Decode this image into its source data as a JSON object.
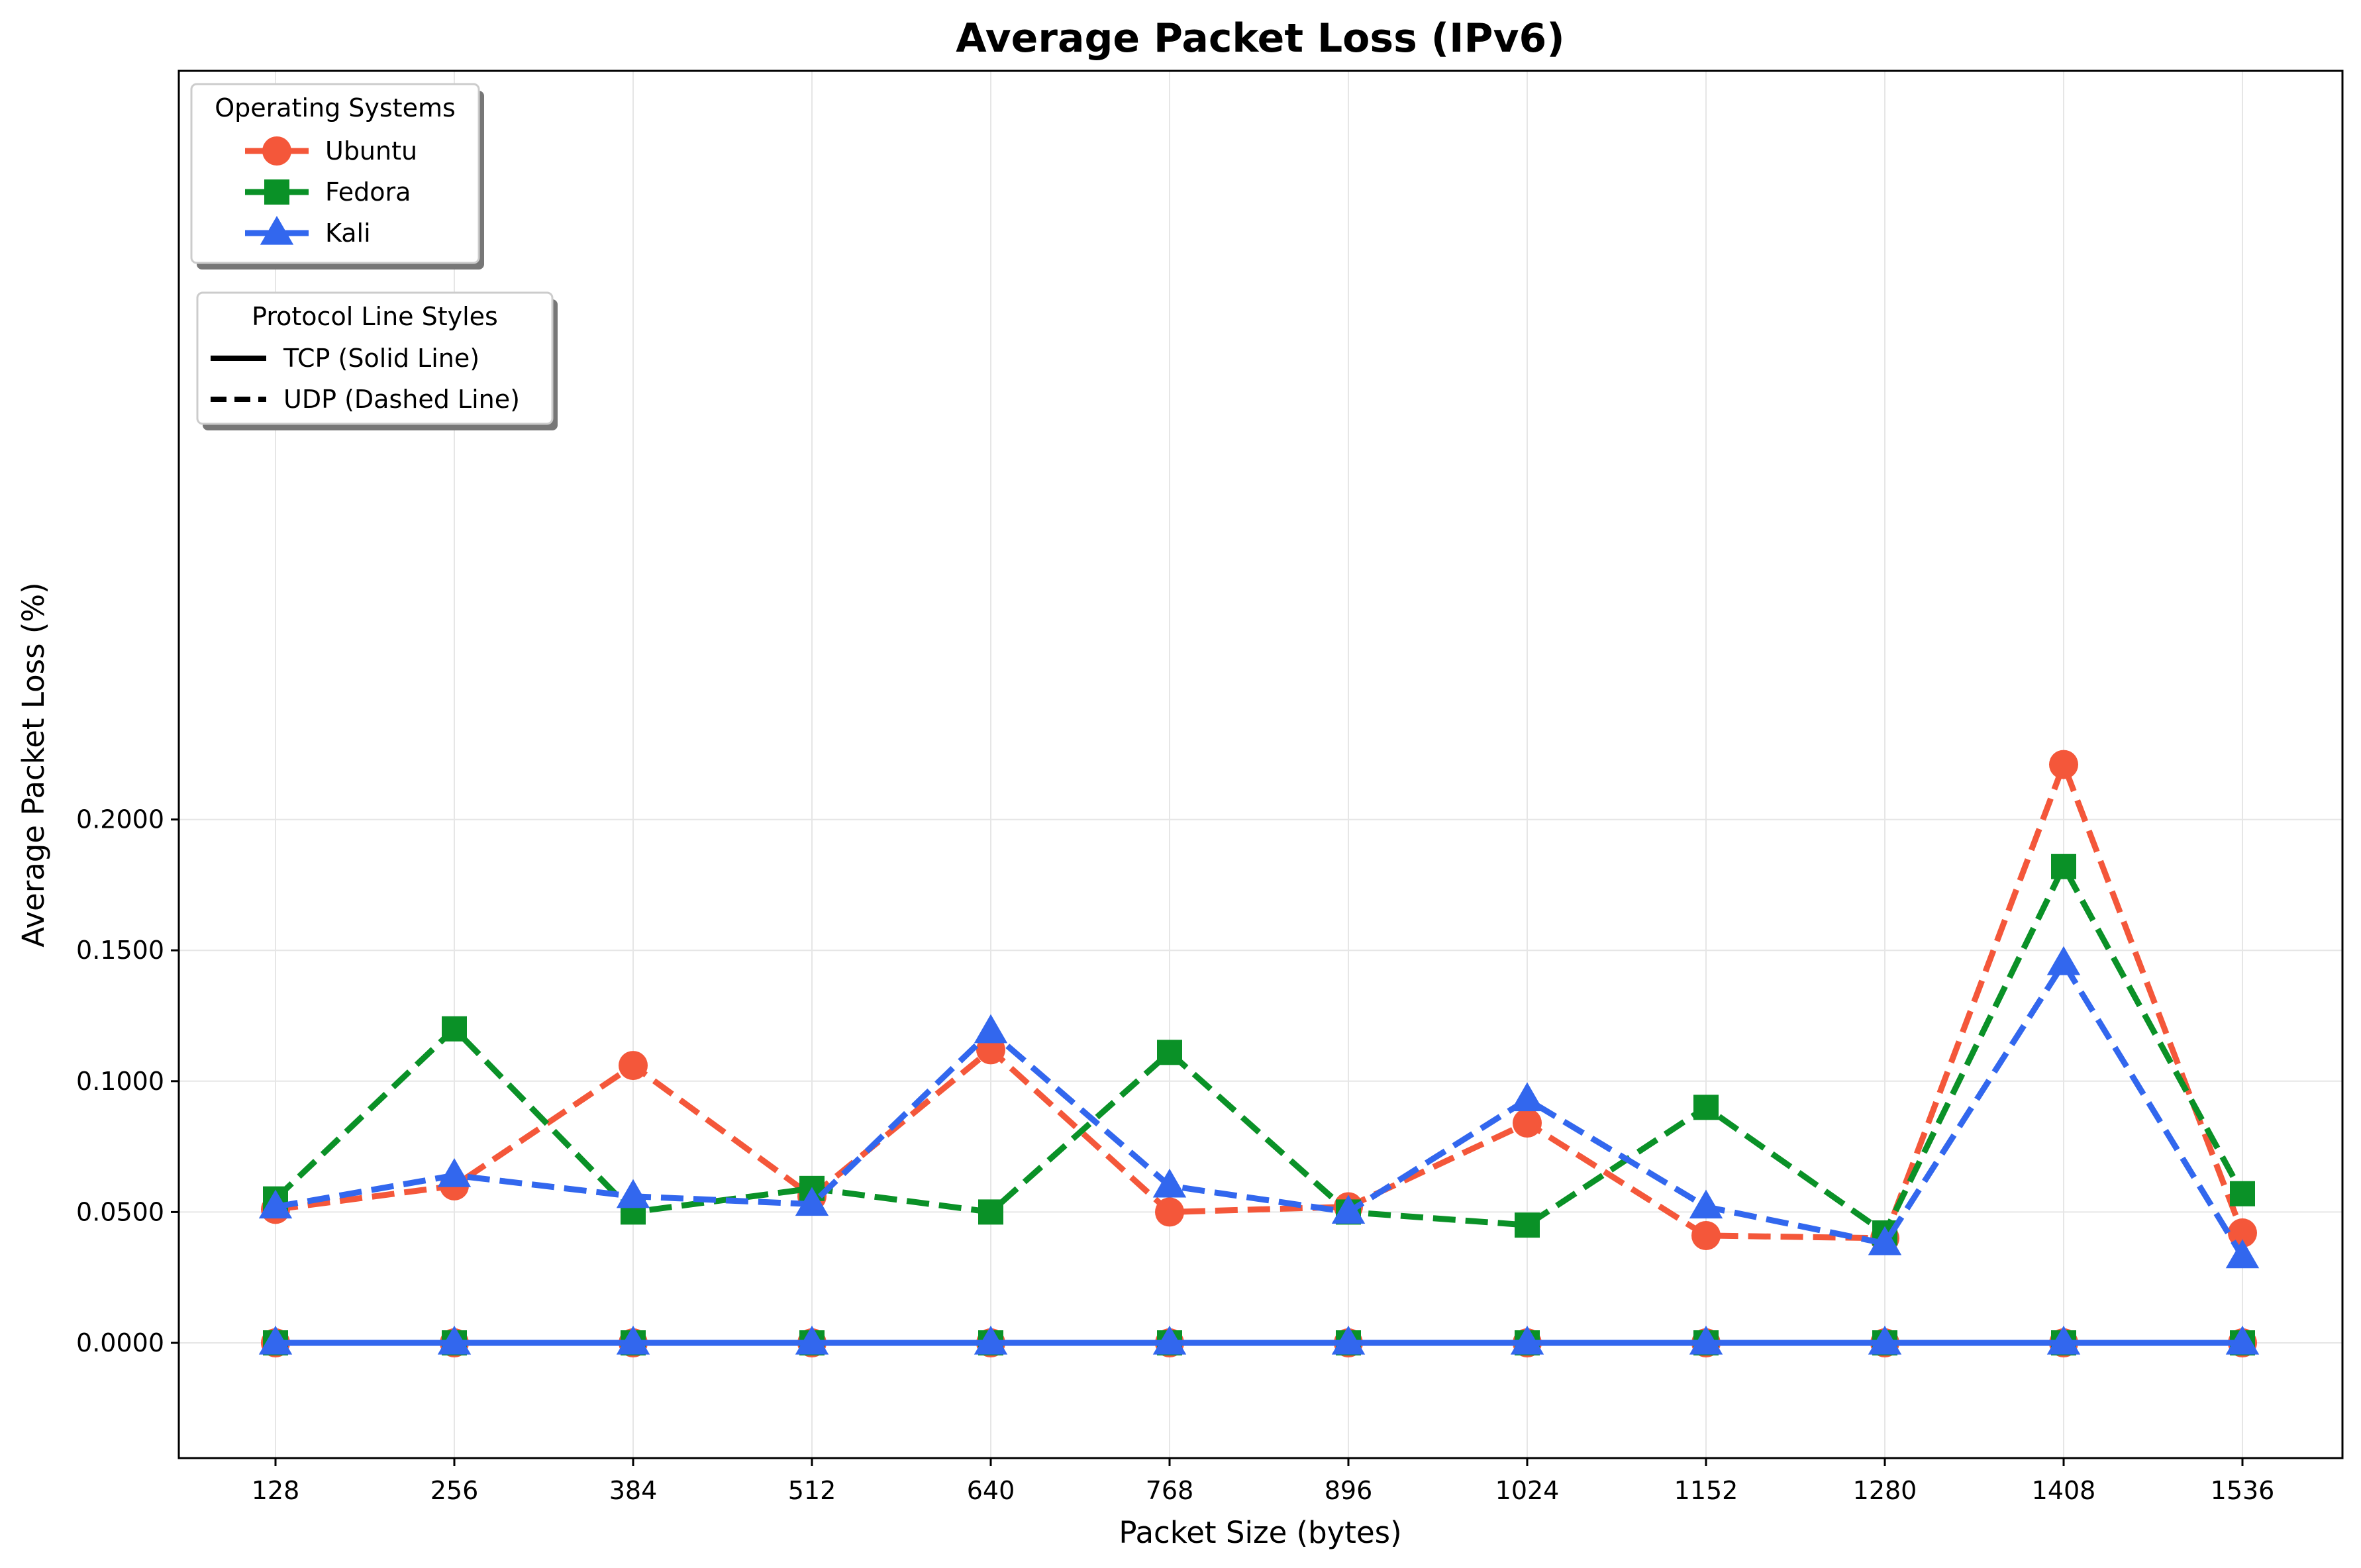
{
  "chart_data": {
    "type": "line",
    "title": "Average Packet Loss (IPv6)",
    "xlabel": "Packet Size (bytes)",
    "ylabel": "Average Packet Loss (%)",
    "x": [
      128,
      256,
      384,
      512,
      640,
      768,
      896,
      1024,
      1152,
      1280,
      1408,
      1536
    ],
    "ylim": [
      -0.022,
      0.243
    ],
    "yticks": [
      "0.0000",
      "0.0500",
      "0.1000",
      "0.1500",
      "0.2000"
    ],
    "ytick_values": [
      0,
      0.05,
      0.1,
      0.15,
      0.2
    ],
    "grid": true,
    "legend_os_title": "Operating Systems",
    "legend_protocol_title": "Protocol Line Styles",
    "legend_placement": "upper-left",
    "series": [
      {
        "name": "Ubuntu",
        "protocol": "TCP",
        "color": "#f4573a",
        "marker": "circle",
        "values": [
          0,
          0,
          0,
          0,
          0,
          0,
          0,
          0,
          0,
          0,
          0,
          0
        ]
      },
      {
        "name": "Fedora",
        "protocol": "TCP",
        "color": "#0a9127",
        "marker": "square",
        "values": [
          0,
          0,
          0,
          0,
          0,
          0,
          0,
          0,
          0,
          0,
          0,
          0
        ]
      },
      {
        "name": "Kali",
        "protocol": "TCP",
        "color": "#3267ee",
        "marker": "triangle",
        "values": [
          0,
          0,
          0,
          0,
          0,
          0,
          0,
          0,
          0,
          0,
          0,
          0
        ]
      },
      {
        "name": "Ubuntu",
        "protocol": "UDP",
        "color": "#f4573a",
        "marker": "circle",
        "values": [
          0.051,
          0.06,
          0.106,
          0.056,
          0.112,
          0.05,
          0.052,
          0.084,
          0.041,
          0.04,
          0.221,
          0.042
        ]
      },
      {
        "name": "Fedora",
        "protocol": "UDP",
        "color": "#0a9127",
        "marker": "square",
        "values": [
          0.055,
          0.12,
          0.05,
          0.059,
          0.05,
          0.111,
          0.05,
          0.045,
          0.09,
          0.042,
          0.182,
          0.057
        ]
      },
      {
        "name": "Kali",
        "protocol": "UDP",
        "color": "#3267ee",
        "marker": "triangle",
        "values": [
          0.052,
          0.064,
          0.056,
          0.053,
          0.119,
          0.06,
          0.05,
          0.093,
          0.052,
          0.038,
          0.145,
          0.033
        ]
      }
    ],
    "legend_os": [
      {
        "name": "Ubuntu",
        "color": "#f4573a",
        "marker": "circle"
      },
      {
        "name": "Fedora",
        "color": "#0a9127",
        "marker": "square"
      },
      {
        "name": "Kali",
        "color": "#3267ee",
        "marker": "triangle"
      }
    ],
    "legend_protocol": [
      {
        "label": "TCP (Solid Line)",
        "style": "solid"
      },
      {
        "label": "UDP (Dashed Line)",
        "style": "dashed"
      }
    ]
  }
}
